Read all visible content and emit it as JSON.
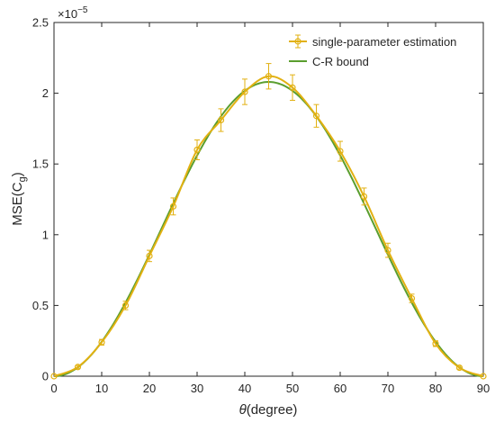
{
  "chart_data": {
    "type": "line",
    "title": "",
    "xlabel_symbol": "θ",
    "xlabel_rest": "(degree)",
    "ylabel": "MSE(C",
    "ylabel_sub": "g",
    "ylabel_close": ")",
    "y_exponent_base": "×10",
    "y_exponent_power": "−5",
    "xlim": [
      0,
      90
    ],
    "ylim": [
      0,
      2.5
    ],
    "x_ticks": [
      0,
      10,
      20,
      30,
      40,
      50,
      60,
      70,
      80,
      90
    ],
    "x_tick_labels": [
      "0",
      "10",
      "20",
      "30",
      "40",
      "50",
      "60",
      "70",
      "80",
      "90"
    ],
    "y_ticks": [
      0,
      0.5,
      1,
      1.5,
      2,
      2.5
    ],
    "y_tick_labels": [
      "0",
      "0.5",
      "1",
      "1.5",
      "2",
      "2.5"
    ],
    "grid": false,
    "legend_position": "top-right",
    "colors": {
      "estimation": "#e2b112",
      "bound": "#5a9e2e",
      "axis": "#262626"
    },
    "series": [
      {
        "name": "single-parameter estimation",
        "style": "line-with-circle-markers-and-errorbars",
        "x": [
          0,
          5,
          10,
          15,
          20,
          25,
          30,
          35,
          40,
          45,
          50,
          55,
          60,
          65,
          70,
          75,
          80,
          85,
          90
        ],
        "values": [
          0,
          0.065,
          0.24,
          0.5,
          0.85,
          1.2,
          1.6,
          1.81,
          2.01,
          2.12,
          2.04,
          1.84,
          1.59,
          1.27,
          0.89,
          0.55,
          0.23,
          0.06,
          0
        ],
        "error": [
          0,
          0.01,
          0.02,
          0.03,
          0.04,
          0.06,
          0.07,
          0.08,
          0.09,
          0.09,
          0.09,
          0.08,
          0.07,
          0.06,
          0.05,
          0.03,
          0.02,
          0.01,
          0
        ]
      },
      {
        "name": "C-R bound",
        "style": "line",
        "amplitude": 2.08,
        "formula": "amplitude*sin^2(2*theta)"
      }
    ]
  }
}
